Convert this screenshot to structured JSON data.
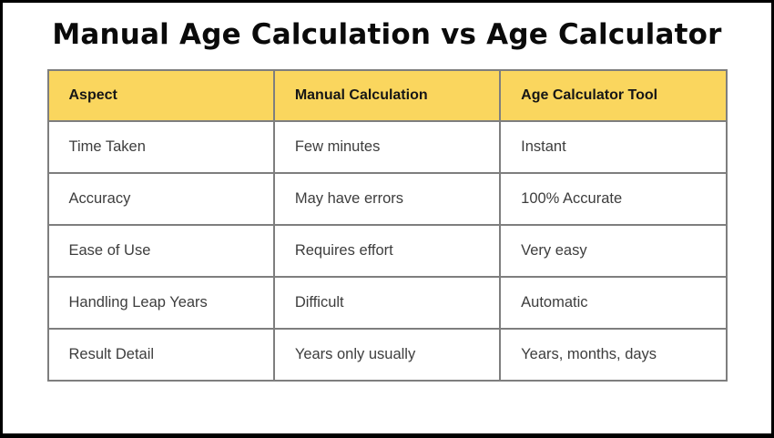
{
  "title": "Manual Age Calculation vs Age Calculator",
  "table": {
    "headers": [
      "Aspect",
      "Manual Calculation",
      "Age Calculator Tool"
    ],
    "rows": [
      [
        "Time Taken",
        "Few minutes",
        "Instant"
      ],
      [
        "Accuracy",
        "May have errors",
        "100% Accurate"
      ],
      [
        "Ease of Use",
        "Requires effort",
        "Very easy"
      ],
      [
        "Handling Leap Years",
        "Difficult",
        "Automatic"
      ],
      [
        "Result Detail",
        "Years only usually",
        "Years, months, days"
      ]
    ]
  },
  "colors": {
    "frame_border": "#000000",
    "header_bg": "#FAD65E",
    "cell_border": "#7E7E7E",
    "header_text": "#161616",
    "body_text": "#3D3D3D",
    "title_text": "#0A0A0A",
    "background": "#FFFFFF"
  },
  "chart_data": {
    "type": "table",
    "title": "Manual Age Calculation vs Age Calculator",
    "columns": [
      "Aspect",
      "Manual Calculation",
      "Age Calculator Tool"
    ],
    "rows": [
      [
        "Time Taken",
        "Few minutes",
        "Instant"
      ],
      [
        "Accuracy",
        "May have errors",
        "100% Accurate"
      ],
      [
        "Ease of Use",
        "Requires effort",
        "Very easy"
      ],
      [
        "Handling Leap Years",
        "Difficult",
        "Automatic"
      ],
      [
        "Result Detail",
        "Years only usually",
        "Years, months, days"
      ]
    ],
    "layout_hints": {
      "header_fill": "#FAD65E",
      "grid": "on",
      "column_count": 3,
      "row_count": 5
    }
  }
}
